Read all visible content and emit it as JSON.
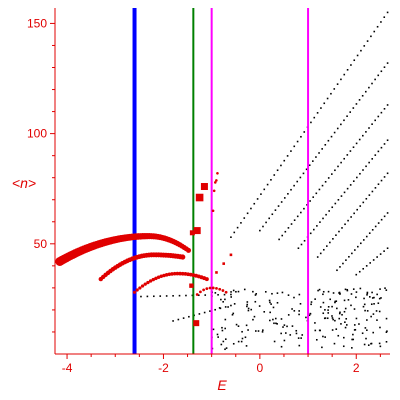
{
  "chart_data": {
    "type": "scatter",
    "title": "",
    "xlabel": "E",
    "ylabel": "<n>",
    "xlim": [
      -4.25,
      2.7
    ],
    "ylim": [
      0,
      157
    ],
    "xticks": [
      -4,
      -2,
      0,
      2
    ],
    "xtick_labels": [
      "-4",
      "-2",
      "0",
      "2"
    ],
    "yticks": [
      50,
      100,
      150
    ],
    "ytick_labels": [
      "50",
      "100",
      "150"
    ],
    "grid": false,
    "colors": {
      "axis": "#e00000",
      "red_points": "#e00000",
      "black_points": "#000000",
      "blue_line": "#0000ff",
      "green_line": "#008000",
      "magenta_line": "#ff00ff"
    },
    "vertical_lines": [
      {
        "x": -2.6,
        "color": "#0000ff",
        "width": 4
      },
      {
        "x": -1.38,
        "color": "#008000",
        "width": 2
      },
      {
        "x": -1.0,
        "color": "#ff00ff",
        "width": 2
      },
      {
        "x": 1.0,
        "color": "#ff00ff",
        "width": 2
      }
    ],
    "red_branches": [
      {
        "x_start": -4.15,
        "x_end": -1.48,
        "peak_x": -2.3,
        "n_start": 42,
        "n_peak": 53.5,
        "n_end": 47,
        "count": 60,
        "size_start": 4.5,
        "size_end": 2.5
      },
      {
        "x_start": -3.3,
        "x_end": -1.6,
        "peak_x": -2.2,
        "n_start": 34,
        "n_peak": 45,
        "n_end": 44,
        "count": 35,
        "size_start": 2.2,
        "size_end": 2.6
      },
      {
        "x_start": -2.6,
        "x_end": -1.1,
        "peak_x": -1.7,
        "n_start": 28,
        "n_peak": 36.5,
        "n_end": 34,
        "count": 28,
        "size_start": 1.6,
        "size_end": 2.0
      },
      {
        "x_start": -1.3,
        "x_end": -0.7,
        "peak_x": -1.0,
        "n_start": 27,
        "n_peak": 30,
        "n_end": 28,
        "count": 10,
        "size_start": 1.4,
        "size_end": 1.4
      },
      {
        "x_start": -0.97,
        "x_end": -0.88,
        "peak_x": -0.92,
        "n_start": 65,
        "n_peak": 78,
        "n_end": 82,
        "count": 5,
        "size_start": 1.3,
        "size_end": 1.3
      }
    ],
    "red_points": [
      {
        "x": -1.15,
        "n": 76,
        "size": 3.5
      },
      {
        "x": -1.25,
        "n": 71,
        "size": 3.8
      },
      {
        "x": -1.3,
        "n": 56,
        "size": 3.5
      },
      {
        "x": -1.4,
        "n": 55,
        "size": 2.5
      },
      {
        "x": -1.32,
        "n": 14,
        "size": 3.0
      },
      {
        "x": -1.42,
        "n": 31,
        "size": 2.2
      },
      {
        "x": -0.9,
        "n": 37,
        "size": 1.3
      },
      {
        "x": -0.75,
        "n": 41,
        "size": 1.3
      },
      {
        "x": -0.6,
        "n": 45,
        "size": 1.3
      }
    ],
    "black_series": [
      {
        "x_start": -0.6,
        "x_end": 2.65,
        "n_start": 53,
        "n_end": 155,
        "count": 48
      },
      {
        "x_start": 0.0,
        "x_end": 2.65,
        "n_start": 56,
        "n_end": 132,
        "count": 42
      },
      {
        "x_start": 0.4,
        "x_end": 2.65,
        "n_start": 52,
        "n_end": 113,
        "count": 36
      },
      {
        "x_start": 0.8,
        "x_end": 2.65,
        "n_start": 48,
        "n_end": 97,
        "count": 30
      },
      {
        "x_start": 1.2,
        "x_end": 2.65,
        "n_start": 44,
        "n_end": 82,
        "count": 24
      },
      {
        "x_start": 1.6,
        "x_end": 2.65,
        "n_start": 38,
        "n_end": 64,
        "count": 18
      },
      {
        "x_start": 2.0,
        "x_end": 2.65,
        "n_start": 36,
        "n_end": 48,
        "count": 10
      },
      {
        "x_start": -2.6,
        "x_end": -0.6,
        "n_start": 26,
        "n_end": 27,
        "count": 16
      },
      {
        "x_start": -1.8,
        "x_end": -0.6,
        "n_start": 15,
        "n_end": 22,
        "count": 12
      }
    ],
    "black_cloud": {
      "x_min": -1.0,
      "x_max": 2.65,
      "n_min": 2,
      "n_max": 30,
      "count": 230,
      "seed": 7
    }
  }
}
